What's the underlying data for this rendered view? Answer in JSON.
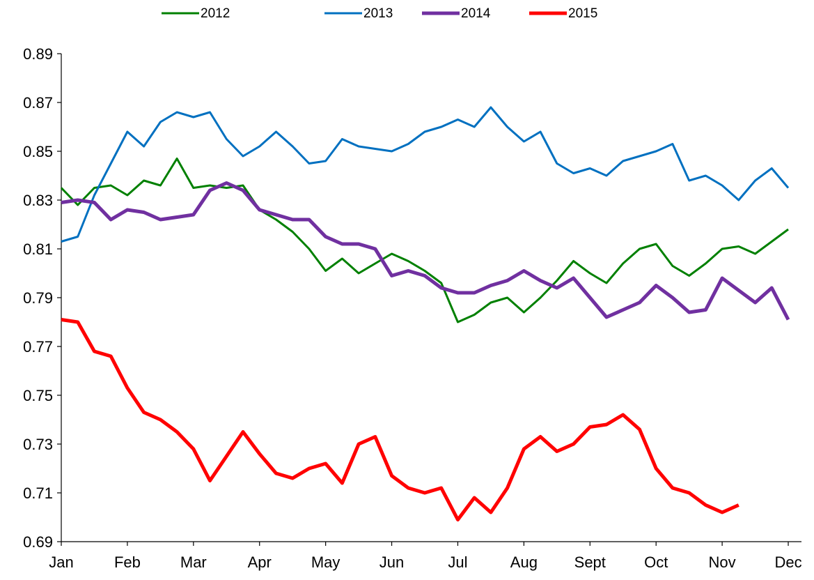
{
  "chart_data": {
    "type": "line",
    "x": [
      0,
      0.25,
      0.5,
      0.75,
      1,
      1.25,
      1.5,
      1.75,
      2,
      2.25,
      2.5,
      2.75,
      3,
      3.25,
      3.5,
      3.75,
      4,
      4.25,
      4.5,
      4.75,
      5,
      5.25,
      5.5,
      5.75,
      6,
      6.25,
      6.5,
      6.75,
      7,
      7.25,
      7.5,
      7.75,
      8,
      8.25,
      8.5,
      8.75,
      9,
      9.25,
      9.5,
      9.75,
      10,
      10.25,
      10.5,
      10.75,
      11
    ],
    "xlim": [
      0,
      11.2
    ],
    "xticks": [
      {
        "value": 0,
        "label": "Jan"
      },
      {
        "value": 1,
        "label": "Feb"
      },
      {
        "value": 2,
        "label": "Mar"
      },
      {
        "value": 3,
        "label": "Apr"
      },
      {
        "value": 4,
        "label": "May"
      },
      {
        "value": 5,
        "label": "Jun"
      },
      {
        "value": 6,
        "label": "Jul"
      },
      {
        "value": 7,
        "label": "Aug"
      },
      {
        "value": 8,
        "label": "Sept"
      },
      {
        "value": 9,
        "label": "Oct"
      },
      {
        "value": 10,
        "label": "Nov"
      },
      {
        "value": 11,
        "label": "Dec"
      }
    ],
    "ylim": [
      0.69,
      0.89
    ],
    "yticks": [
      0.69,
      0.71,
      0.73,
      0.75,
      0.77,
      0.79,
      0.81,
      0.83,
      0.85,
      0.87,
      0.89
    ],
    "grid": false,
    "legend": "top",
    "series": [
      {
        "name": "2012",
        "color": "#008000",
        "width": 3,
        "values": [
          0.835,
          0.828,
          0.835,
          0.836,
          0.832,
          0.838,
          0.836,
          0.847,
          0.835,
          0.836,
          0.835,
          0.836,
          0.826,
          0.822,
          0.817,
          0.81,
          0.801,
          0.806,
          0.8,
          0.804,
          0.808,
          0.805,
          0.801,
          0.796,
          0.78,
          0.783,
          0.788,
          0.79,
          0.784,
          0.79,
          0.797,
          0.805,
          0.8,
          0.796,
          0.804,
          0.81,
          0.812,
          0.803,
          0.799,
          0.804,
          0.81,
          0.811,
          0.808,
          0.813,
          0.818
        ]
      },
      {
        "name": "2013",
        "color": "#0070c0",
        "width": 3,
        "values": [
          0.813,
          0.815,
          0.832,
          0.845,
          0.858,
          0.852,
          0.862,
          0.866,
          0.864,
          0.866,
          0.855,
          0.848,
          0.852,
          0.858,
          0.852,
          0.845,
          0.846,
          0.855,
          0.852,
          0.851,
          0.85,
          0.853,
          0.858,
          0.86,
          0.863,
          0.86,
          0.868,
          0.86,
          0.854,
          0.858,
          0.845,
          0.841,
          0.843,
          0.84,
          0.846,
          0.848,
          0.85,
          0.853,
          0.838,
          0.84,
          0.836,
          0.83,
          0.838,
          0.843,
          0.835
        ]
      },
      {
        "name": "2014",
        "color": "#7030a0",
        "width": 5,
        "values": [
          0.829,
          0.83,
          0.829,
          0.822,
          0.826,
          0.825,
          0.822,
          0.823,
          0.824,
          0.834,
          0.837,
          0.834,
          0.826,
          0.824,
          0.822,
          0.822,
          0.815,
          0.812,
          0.812,
          0.81,
          0.799,
          0.801,
          0.799,
          0.794,
          0.792,
          0.792,
          0.795,
          0.797,
          0.801,
          0.797,
          0.794,
          0.798,
          0.79,
          0.782,
          0.785,
          0.788,
          0.795,
          0.79,
          0.784,
          0.785,
          0.798,
          0.793,
          0.788,
          0.794,
          0.781
        ]
      },
      {
        "name": "2015",
        "color": "#ff0000",
        "width": 5,
        "values": [
          0.781,
          0.78,
          0.768,
          0.766,
          0.753,
          0.743,
          0.74,
          0.735,
          0.728,
          0.715,
          0.725,
          0.735,
          0.726,
          0.718,
          0.716,
          0.72,
          0.722,
          0.714,
          0.73,
          0.733,
          0.717,
          0.712,
          0.71,
          0.712,
          0.699,
          0.708,
          0.702,
          0.712,
          0.728,
          0.733,
          0.727,
          0.73,
          0.737,
          0.738,
          0.742,
          0.736,
          0.72,
          0.712,
          0.71,
          0.705,
          0.702,
          0.705,
          null,
          null,
          null
        ]
      }
    ]
  }
}
